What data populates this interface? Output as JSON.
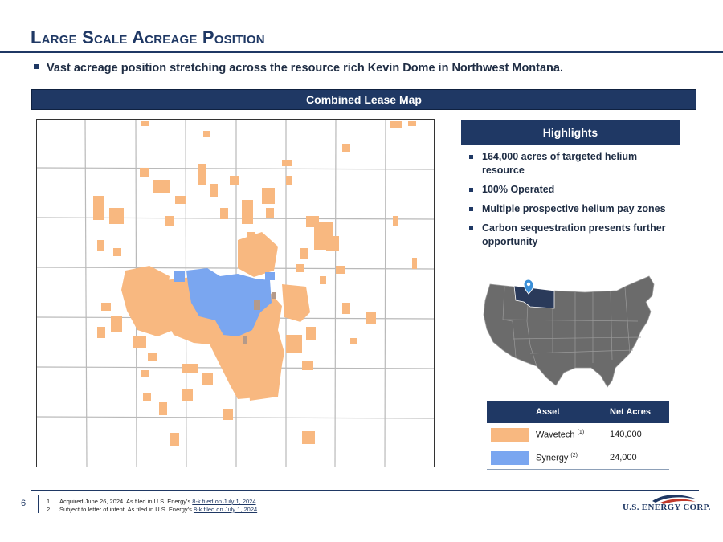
{
  "slide": {
    "title": "Large Scale Acreage Position",
    "main_bullet": "Vast acreage position stretching across the resource rich Kevin Dome in Northwest Montana.",
    "banner": "Combined Lease Map",
    "page_number": "6"
  },
  "highlights": {
    "header": "Highlights",
    "items": [
      "164,000 acres of targeted helium resource",
      "100% Operated",
      "Multiple prospective helium pay zones",
      "Carbon sequestration presents further opportunity"
    ]
  },
  "legend": {
    "col_asset": "Asset",
    "col_acres": "Net Acres",
    "rows": [
      {
        "asset": "Wavetech",
        "note": "(1)",
        "acres": "140,000",
        "color": "#f8b880"
      },
      {
        "asset": "Synergy",
        "note": "(2)",
        "acres": "24,000",
        "color": "#7aa6f0"
      }
    ]
  },
  "colors": {
    "navy": "#1f3864",
    "wavetech": "#f8b880",
    "synergy": "#7aa6f0",
    "state_gray": "#6b6b6b",
    "montana": "#2a3a5a",
    "pin": "#3a8fd8"
  },
  "footnotes": [
    {
      "num": "1.",
      "text": "Acquired June 26, 2024. As filed in ",
      "src": "U.S. Energy's ",
      "link": "8-k filed on July 1, 2024",
      "end": "."
    },
    {
      "num": "2.",
      "text": "Subject to letter of intent. As filed in ",
      "src": "U.S. Energy's ",
      "link": "8-k filed on July 1, 2024",
      "end": "."
    }
  ],
  "logo": {
    "text": "U.S. ENERGY CORP.",
    "icon": "swoosh-logo-icon"
  }
}
